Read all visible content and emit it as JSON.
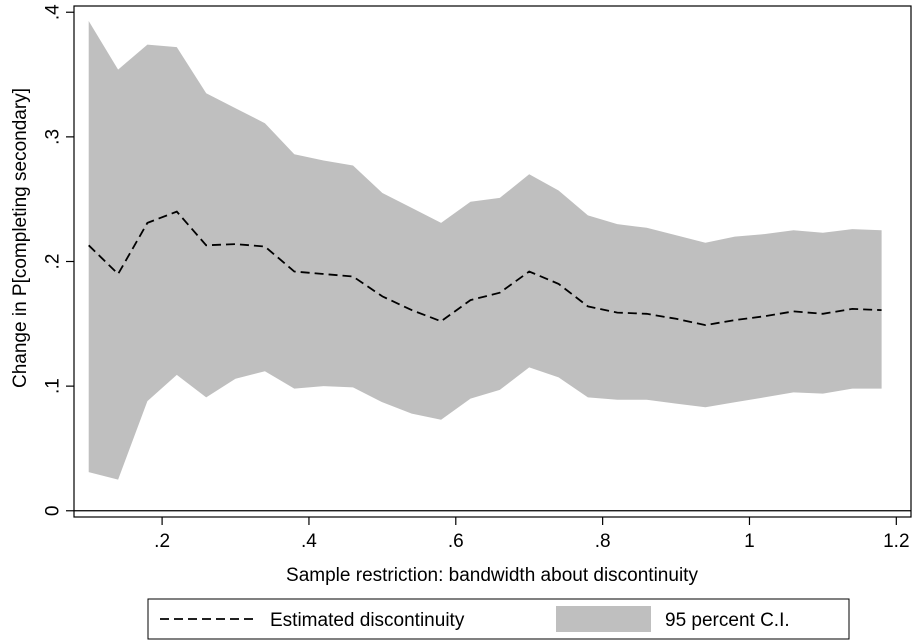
{
  "chart_data": {
    "type": "line",
    "xlabel": "Sample restriction: bandwidth about discontinuity",
    "ylabel": "Change in P[completing secondary]",
    "xlim": [
      0.08,
      1.22
    ],
    "ylim": [
      -0.005,
      0.405
    ],
    "x_ticks": [
      {
        "value": 0.2,
        "label": ".2"
      },
      {
        "value": 0.4,
        "label": ".4"
      },
      {
        "value": 0.6,
        "label": ".6"
      },
      {
        "value": 0.8,
        "label": ".8"
      },
      {
        "value": 1.0,
        "label": "1"
      },
      {
        "value": 1.2,
        "label": "1.2"
      }
    ],
    "y_ticks": [
      {
        "value": 0,
        "label": "0"
      },
      {
        "value": 0.1,
        "label": ".1"
      },
      {
        "value": 0.2,
        "label": ".2"
      },
      {
        "value": 0.3,
        "label": ".3"
      },
      {
        "value": 0.4,
        "label": ".4"
      }
    ],
    "reference_line_y": 0,
    "grid": false,
    "legend_position": "bottom",
    "x": [
      0.1,
      0.14,
      0.18,
      0.22,
      0.26,
      0.3,
      0.34,
      0.38,
      0.42,
      0.46,
      0.5,
      0.54,
      0.58,
      0.62,
      0.66,
      0.7,
      0.74,
      0.78,
      0.82,
      0.86,
      0.9,
      0.94,
      0.98,
      1.02,
      1.06,
      1.1,
      1.14,
      1.18
    ],
    "series": [
      {
        "name": "Estimated discontinuity",
        "style": "dashed",
        "color": "#000000",
        "values": [
          0.213,
          0.19,
          0.231,
          0.24,
          0.213,
          0.214,
          0.212,
          0.192,
          0.19,
          0.188,
          0.172,
          0.161,
          0.152,
          0.169,
          0.175,
          0.192,
          0.182,
          0.164,
          0.159,
          0.158,
          0.154,
          0.149,
          0.153,
          0.156,
          0.16,
          0.158,
          0.162,
          0.161
        ]
      },
      {
        "name": "95 percent C.I.",
        "style": "band",
        "color": "#bfbfbf",
        "lower": [
          0.031,
          0.025,
          0.088,
          0.109,
          0.091,
          0.106,
          0.112,
          0.098,
          0.1,
          0.099,
          0.087,
          0.078,
          0.073,
          0.09,
          0.097,
          0.115,
          0.107,
          0.091,
          0.089,
          0.089,
          0.086,
          0.083,
          0.087,
          0.091,
          0.095,
          0.094,
          0.098,
          0.098
        ],
        "upper": [
          0.393,
          0.354,
          0.374,
          0.372,
          0.335,
          0.323,
          0.311,
          0.286,
          0.281,
          0.277,
          0.255,
          0.243,
          0.231,
          0.248,
          0.251,
          0.27,
          0.257,
          0.237,
          0.23,
          0.227,
          0.221,
          0.215,
          0.22,
          0.222,
          0.225,
          0.223,
          0.226,
          0.225
        ]
      }
    ]
  }
}
